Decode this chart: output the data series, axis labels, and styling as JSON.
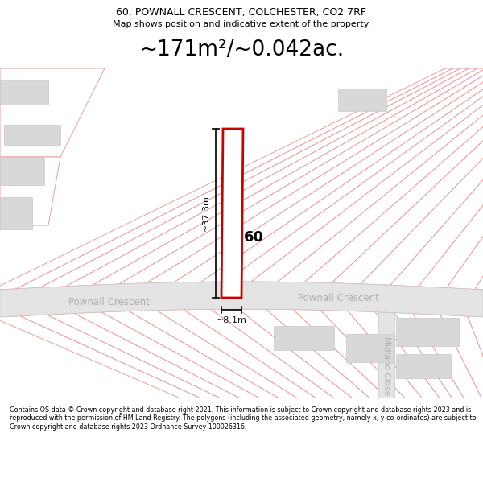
{
  "title_line1": "60, POWNALL CRESCENT, COLCHESTER, CO2 7RF",
  "title_line2": "Map shows position and indicative extent of the property.",
  "area_text": "~171m²/~0.042ac.",
  "label_60": "60",
  "label_pownall_left": "Pownall Crescent",
  "label_pownall_right": "Pownall Crescent",
  "label_midland": "Midland Close",
  "dim_height": "~37.3m",
  "dim_width": "~8.1m",
  "bg_color": "#ffffff",
  "highlight_color": "#cc0000",
  "plot_edge": "#e8a0a0",
  "plot_fill": "#ffffff",
  "gray_fill": "#d8d8d8",
  "road_fill": "#e4e4e4",
  "road_edge": "#c8c8c8",
  "road_label_color": "#b0b0b0",
  "dim_color": "#111111",
  "footer_text": "Contains OS data © Crown copyright and database right 2021. This information is subject to Crown copyright and database rights 2023 and is reproduced with the permission of HM Land Registry. The polygons (including the associated geometry, namely x, y co-ordinates) are subject to Crown copyright and database rights 2023 Ordnance Survey 100026316."
}
